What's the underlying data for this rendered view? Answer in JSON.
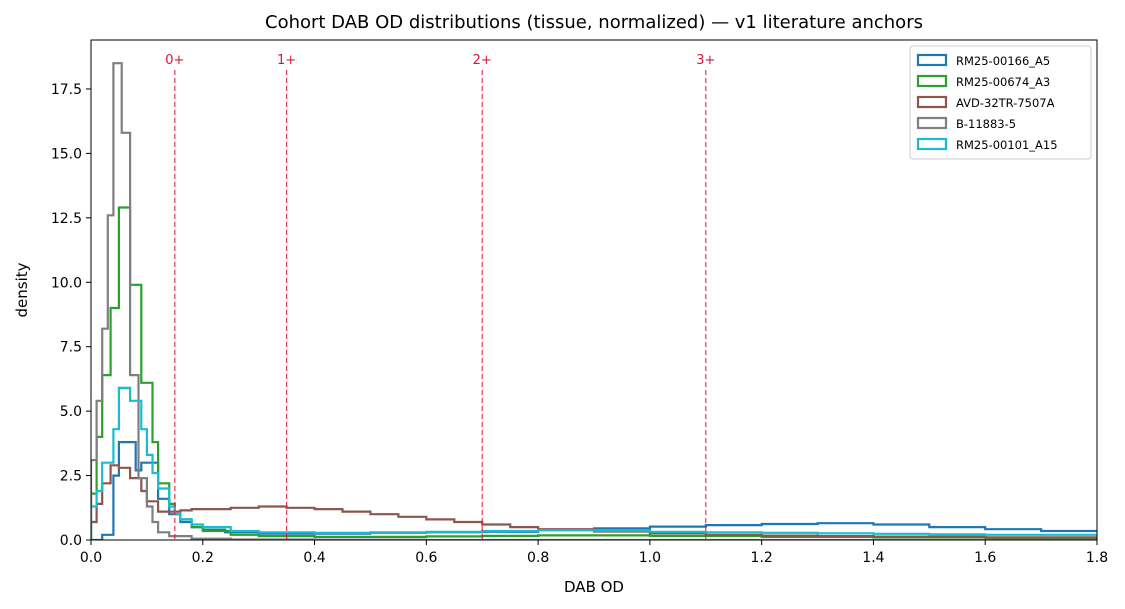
{
  "chart_data": {
    "type": "histogram",
    "title": "Cohort DAB OD distributions (tissue, normalized) — v1 literature anchors",
    "xlabel": "DAB OD",
    "ylabel": "density",
    "xlim": [
      0,
      1.8
    ],
    "ylim": [
      0,
      19.4
    ],
    "xticks": [
      0,
      0.2,
      0.4,
      0.6,
      0.8,
      1.0,
      1.2,
      1.4,
      1.6,
      1.8
    ],
    "xtick_labels": [
      "0.0",
      "0.2",
      "0.4",
      "0.6",
      "0.8",
      "1.0",
      "1.2",
      "1.4",
      "1.6",
      "1.8"
    ],
    "yticks": [
      0,
      2.5,
      5,
      7.5,
      10,
      12.5,
      15,
      17.5
    ],
    "ytick_labels": [
      "0.0",
      "2.5",
      "5.0",
      "7.5",
      "10.0",
      "12.5",
      "15.0",
      "17.5"
    ],
    "grid": false,
    "legend_position": "top-right",
    "reference_lines": [
      {
        "x": 0.15,
        "label": "0+",
        "color": "#dc143c"
      },
      {
        "x": 0.35,
        "label": "1+",
        "color": "#dc143c"
      },
      {
        "x": 0.7,
        "label": "2+",
        "color": "#dc143c"
      },
      {
        "x": 1.1,
        "label": "3+",
        "color": "#dc143c"
      }
    ],
    "series": [
      {
        "name": "RM25-00166_A5",
        "color": "#1f77b4",
        "points": [
          [
            0,
            0.0
          ],
          [
            0.01,
            0.0
          ],
          [
            0.02,
            0.2
          ],
          [
            0.04,
            2.5
          ],
          [
            0.05,
            3.8
          ],
          [
            0.07,
            3.8
          ],
          [
            0.08,
            2.7
          ],
          [
            0.09,
            3.0
          ],
          [
            0.11,
            3.0
          ],
          [
            0.12,
            1.6
          ],
          [
            0.13,
            1.6
          ],
          [
            0.14,
            1.0
          ],
          [
            0.16,
            0.7
          ],
          [
            0.18,
            0.5
          ],
          [
            0.2,
            0.4
          ],
          [
            0.24,
            0.3
          ],
          [
            0.3,
            0.25
          ],
          [
            0.4,
            0.25
          ],
          [
            0.5,
            0.28
          ],
          [
            0.6,
            0.3
          ],
          [
            0.7,
            0.32
          ],
          [
            0.8,
            0.38
          ],
          [
            0.9,
            0.45
          ],
          [
            1.0,
            0.52
          ],
          [
            1.1,
            0.58
          ],
          [
            1.2,
            0.62
          ],
          [
            1.3,
            0.65
          ],
          [
            1.4,
            0.6
          ],
          [
            1.5,
            0.5
          ],
          [
            1.6,
            0.42
          ],
          [
            1.7,
            0.35
          ],
          [
            1.8,
            0.3
          ]
        ]
      },
      {
        "name": "RM25-00674_A3",
        "color": "#2ca02c",
        "points": [
          [
            0,
            1.8
          ],
          [
            0.01,
            4.0
          ],
          [
            0.02,
            6.4
          ],
          [
            0.035,
            9.0
          ],
          [
            0.05,
            12.9
          ],
          [
            0.07,
            9.9
          ],
          [
            0.09,
            6.1
          ],
          [
            0.11,
            3.8
          ],
          [
            0.12,
            2.2
          ],
          [
            0.14,
            1.4
          ],
          [
            0.15,
            1.0
          ],
          [
            0.16,
            0.8
          ],
          [
            0.18,
            0.5
          ],
          [
            0.2,
            0.35
          ],
          [
            0.25,
            0.2
          ],
          [
            0.3,
            0.15
          ],
          [
            0.4,
            0.12
          ],
          [
            0.5,
            0.12
          ],
          [
            0.6,
            0.14
          ],
          [
            0.7,
            0.16
          ],
          [
            0.8,
            0.18
          ],
          [
            0.9,
            0.18
          ],
          [
            1.0,
            0.16
          ],
          [
            1.2,
            0.12
          ],
          [
            1.4,
            0.1
          ],
          [
            1.6,
            0.08
          ],
          [
            1.8,
            0.06
          ]
        ]
      },
      {
        "name": "AVD-32TR-7507A",
        "color": "#8c564b",
        "points": [
          [
            0,
            0.7
          ],
          [
            0.01,
            1.4
          ],
          [
            0.02,
            2.2
          ],
          [
            0.035,
            2.9
          ],
          [
            0.05,
            2.8
          ],
          [
            0.07,
            2.4
          ],
          [
            0.09,
            1.9
          ],
          [
            0.1,
            1.5
          ],
          [
            0.12,
            1.1
          ],
          [
            0.14,
            1.1
          ],
          [
            0.16,
            1.15
          ],
          [
            0.18,
            1.2
          ],
          [
            0.2,
            1.2
          ],
          [
            0.25,
            1.25
          ],
          [
            0.3,
            1.3
          ],
          [
            0.35,
            1.25
          ],
          [
            0.4,
            1.2
          ],
          [
            0.45,
            1.1
          ],
          [
            0.5,
            1.0
          ],
          [
            0.55,
            0.9
          ],
          [
            0.6,
            0.8
          ],
          [
            0.65,
            0.7
          ],
          [
            0.7,
            0.6
          ],
          [
            0.75,
            0.5
          ],
          [
            0.8,
            0.42
          ],
          [
            0.9,
            0.33
          ],
          [
            1.0,
            0.26
          ],
          [
            1.1,
            0.2
          ],
          [
            1.2,
            0.17
          ],
          [
            1.3,
            0.15
          ],
          [
            1.4,
            0.13
          ],
          [
            1.6,
            0.1
          ],
          [
            1.8,
            0.09
          ]
        ]
      },
      {
        "name": "B-11883-5",
        "color": "#7f7f7f",
        "points": [
          [
            0,
            3.1
          ],
          [
            0.01,
            5.4
          ],
          [
            0.02,
            8.2
          ],
          [
            0.03,
            12.6
          ],
          [
            0.04,
            18.5
          ],
          [
            0.055,
            15.8
          ],
          [
            0.07,
            6.4
          ],
          [
            0.085,
            2.4
          ],
          [
            0.1,
            1.3
          ],
          [
            0.11,
            0.7
          ],
          [
            0.12,
            0.3
          ],
          [
            0.14,
            0.15
          ],
          [
            0.18,
            0.05
          ],
          [
            0.25,
            0.02
          ],
          [
            0.4,
            0.01
          ],
          [
            0.6,
            0.0
          ],
          [
            1.0,
            0.0
          ],
          [
            1.8,
            0.0
          ]
        ]
      },
      {
        "name": "RM25-00101_A15",
        "color": "#17becf",
        "points": [
          [
            0,
            1.3
          ],
          [
            0.01,
            1.9
          ],
          [
            0.02,
            3.0
          ],
          [
            0.04,
            4.3
          ],
          [
            0.05,
            5.9
          ],
          [
            0.07,
            5.4
          ],
          [
            0.09,
            4.3
          ],
          [
            0.1,
            3.3
          ],
          [
            0.11,
            2.6
          ],
          [
            0.12,
            2.0
          ],
          [
            0.14,
            1.3
          ],
          [
            0.15,
            1.0
          ],
          [
            0.16,
            0.8
          ],
          [
            0.18,
            0.6
          ],
          [
            0.2,
            0.5
          ],
          [
            0.25,
            0.35
          ],
          [
            0.3,
            0.3
          ],
          [
            0.4,
            0.28
          ],
          [
            0.5,
            0.3
          ],
          [
            0.6,
            0.32
          ],
          [
            0.7,
            0.35
          ],
          [
            0.8,
            0.38
          ],
          [
            0.9,
            0.36
          ],
          [
            1.0,
            0.32
          ],
          [
            1.1,
            0.3
          ],
          [
            1.2,
            0.28
          ],
          [
            1.3,
            0.26
          ],
          [
            1.4,
            0.24
          ],
          [
            1.5,
            0.22
          ],
          [
            1.6,
            0.2
          ],
          [
            1.8,
            0.18
          ]
        ]
      }
    ]
  }
}
